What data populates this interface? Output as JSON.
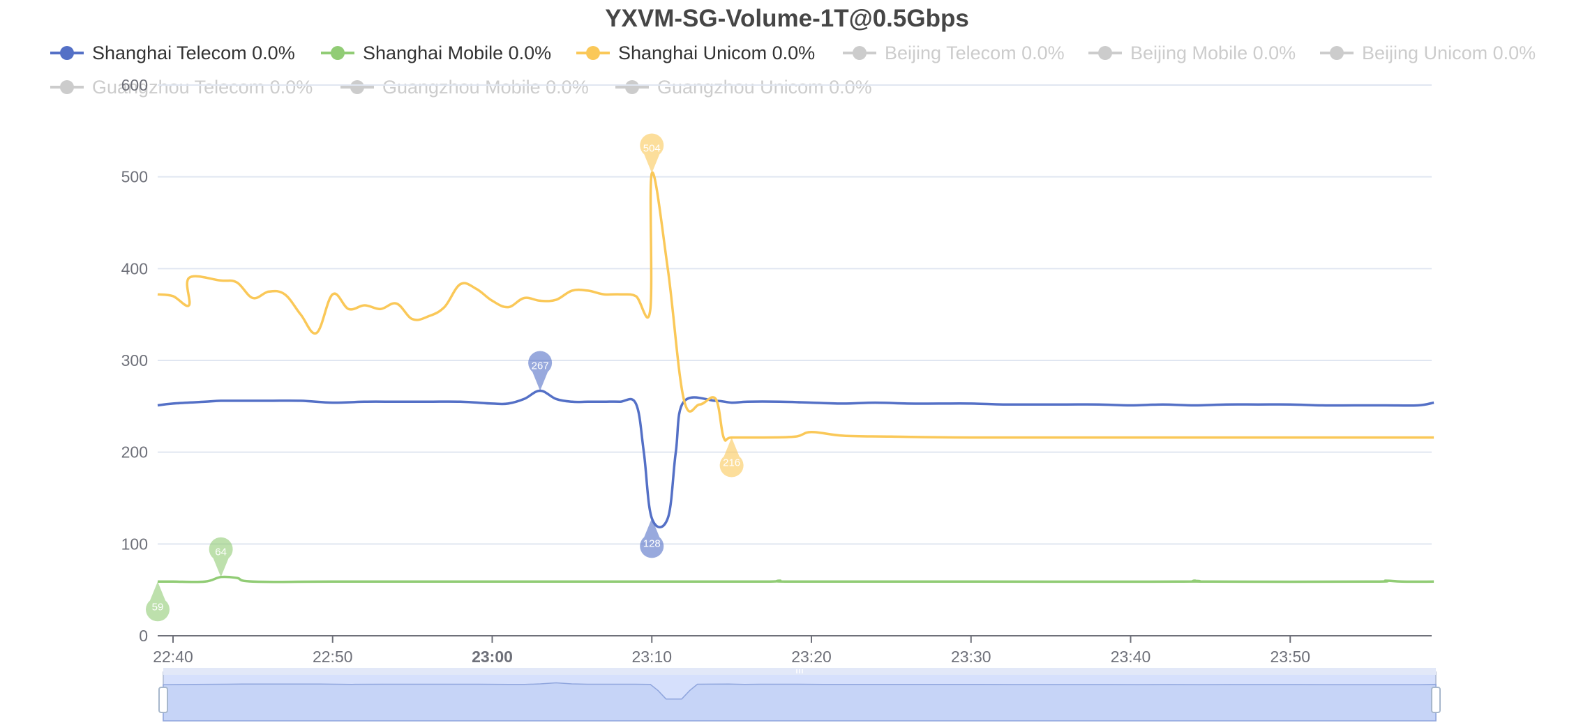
{
  "colors": {
    "shanghai_telecom": "#5470c6",
    "shanghai_mobile": "#91cc75",
    "shanghai_unicom": "#fac858",
    "legend_inactive": "#cccccc",
    "grid": "#e0e6f1",
    "axis": "#6e7079",
    "zoom_fill": "#d6e0fc",
    "zoom_border": "#acb8d1"
  },
  "chart_data": {
    "type": "line",
    "title": "YXVM-SG-Volume-1T@0.5Gbps",
    "ylim": [
      0,
      600
    ],
    "yticks": [
      0,
      100,
      200,
      300,
      400,
      500,
      600
    ],
    "xlim_minutes": [
      "22:38",
      "23:59"
    ],
    "xticks": [
      {
        "label": "22:40",
        "bold": false
      },
      {
        "label": "22:50",
        "bold": false
      },
      {
        "label": "23:00",
        "bold": true
      },
      {
        "label": "23:10",
        "bold": false
      },
      {
        "label": "23:20",
        "bold": false
      },
      {
        "label": "23:30",
        "bold": false
      },
      {
        "label": "23:40",
        "bold": false
      },
      {
        "label": "23:50",
        "bold": false
      }
    ],
    "grid": true,
    "legend_position": "top",
    "legend": [
      {
        "label": "Shanghai Telecom 0.0%",
        "active": true,
        "color_key": "shanghai_telecom"
      },
      {
        "label": "Shanghai Mobile 0.0%",
        "active": true,
        "color_key": "shanghai_mobile"
      },
      {
        "label": "Shanghai Unicom 0.0%",
        "active": true,
        "color_key": "shanghai_unicom"
      },
      {
        "label": "Beijing Telecom 0.0%",
        "active": false
      },
      {
        "label": "Beijing Mobile 0.0%",
        "active": false
      },
      {
        "label": "Beijing Unicom 0.0%",
        "active": false
      },
      {
        "label": "Guangzhou Telecom 0.0%",
        "active": false
      },
      {
        "label": "Guangzhou Mobile 0.0%",
        "active": false
      },
      {
        "label": "Guangzhou Unicom 0.0%",
        "active": false
      }
    ],
    "series": [
      {
        "name": "Shanghai Telecom 0.0%",
        "color_key": "shanghai_telecom",
        "x": [
          "22:38",
          "22:40",
          "22:42",
          "22:43",
          "22:44",
          "22:46",
          "22:48",
          "22:50",
          "22:52",
          "22:54",
          "22:56",
          "22:58",
          "23:00",
          "23:01",
          "23:02",
          "23:03",
          "23:04",
          "23:05",
          "23:06",
          "23:07",
          "23:08",
          "23:09",
          "23:09.5",
          "23:10",
          "23:11",
          "23:11.5",
          "23:12",
          "23:14",
          "23:15",
          "23:16",
          "23:18",
          "23:20",
          "23:22",
          "23:24",
          "23:26",
          "23:28",
          "23:30",
          "23:32",
          "23:34",
          "23:36",
          "23:38",
          "23:40",
          "23:42",
          "23:44",
          "23:46",
          "23:48",
          "23:50",
          "23:52",
          "23:54",
          "23:56",
          "23:58",
          "23:59"
        ],
        "values": [
          251,
          253,
          255,
          256,
          256,
          256,
          256,
          254,
          255,
          255,
          255,
          255,
          253,
          253,
          258,
          267,
          258,
          255,
          255,
          255,
          255,
          253,
          200,
          128,
          128,
          200,
          255,
          256,
          254,
          255,
          255,
          254,
          253,
          254,
          253,
          253,
          253,
          252,
          252,
          252,
          252,
          251,
          252,
          251,
          252,
          252,
          252,
          251,
          251,
          251,
          251,
          254
        ],
        "markers": [
          {
            "label": "267",
            "x": "23:03",
            "value": 267,
            "kind": "max"
          },
          {
            "label": "128",
            "x": "23:10",
            "value": 128,
            "kind": "min"
          }
        ]
      },
      {
        "name": "Shanghai Mobile 0.0%",
        "color_key": "shanghai_mobile",
        "x": [
          "22:38",
          "22:40",
          "22:42",
          "22:43",
          "22:44",
          "22:45",
          "22:50",
          "23:00",
          "23:10",
          "23:17",
          "23:18",
          "23:19",
          "23:30",
          "23:43",
          "23:44",
          "23:45",
          "23:55",
          "23:56",
          "23:57",
          "23:59"
        ],
        "values": [
          59,
          59,
          59,
          64,
          63,
          59,
          59,
          59,
          59,
          59,
          60,
          59,
          59,
          59,
          60,
          59,
          59,
          60,
          59,
          59
        ],
        "markers": [
          {
            "label": "64",
            "x": "22:43",
            "value": 64,
            "kind": "max"
          },
          {
            "label": "59",
            "x": "22:38",
            "value": 59,
            "kind": "min"
          }
        ]
      },
      {
        "name": "Shanghai Unicom 0.0%",
        "color_key": "shanghai_unicom",
        "x": [
          "22:38",
          "22:40",
          "22:41",
          "22:41.01",
          "22:43",
          "22:44",
          "22:45",
          "22:46",
          "22:47",
          "22:48",
          "22:49",
          "22:50",
          "22:51",
          "22:52",
          "22:53",
          "22:54",
          "22:55",
          "22:56",
          "22:57",
          "22:58",
          "22:59",
          "23:00",
          "23:01",
          "23:02",
          "23:03",
          "23:04",
          "23:05",
          "23:06",
          "23:07",
          "23:08",
          "23:09",
          "23:09.9",
          "23:10",
          "23:11",
          "23:12",
          "23:13",
          "23:14",
          "23:14.5",
          "23:15",
          "23:17",
          "23:19",
          "23:20",
          "23:22",
          "23:25",
          "23:30",
          "23:40",
          "23:50",
          "23:59"
        ],
        "values": [
          372,
          370,
          360,
          390,
          387,
          385,
          368,
          375,
          372,
          350,
          330,
          372,
          356,
          360,
          356,
          362,
          345,
          348,
          358,
          383,
          378,
          365,
          358,
          368,
          365,
          366,
          376,
          376,
          372,
          372,
          370,
          355,
          504,
          400,
          258,
          252,
          258,
          216,
          216,
          216,
          217,
          222,
          218,
          217,
          216,
          216,
          216,
          216
        ],
        "markers": [
          {
            "label": "504",
            "x": "23:10",
            "value": 504,
            "kind": "max"
          },
          {
            "label": "216",
            "x": "23:15",
            "value": 216,
            "kind": "min"
          }
        ]
      }
    ]
  }
}
